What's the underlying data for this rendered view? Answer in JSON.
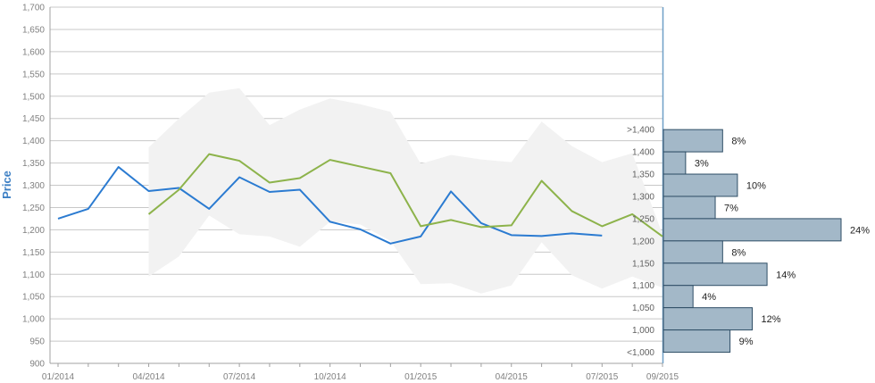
{
  "chart_data": [
    {
      "type": "line",
      "ylabel": "Price",
      "xlabel": "",
      "x_ticks": [
        "01/2014",
        "04/2014",
        "07/2014",
        "10/2014",
        "01/2015",
        "04/2015",
        "07/2015",
        "09/2015"
      ],
      "x_range": [
        "2014-01",
        "2015-09"
      ],
      "y_ticks": [
        "900",
        "950",
        "1,000",
        "1,050",
        "1,100",
        "1,150",
        "1,200",
        "1,250",
        "1,300",
        "1,350",
        "1,400",
        "1,450",
        "1,500",
        "1,550",
        "1,600",
        "1,650",
        "1,700"
      ],
      "ylim": [
        900,
        1700
      ],
      "grid": "horizontal",
      "series": [
        {
          "color": "#2b7bd1",
          "points": [
            {
              "x": "2014-01",
              "y": 1225
            },
            {
              "x": "2014-02",
              "y": 1247
            },
            {
              "x": "2014-03",
              "y": 1341
            },
            {
              "x": "2014-04",
              "y": 1287
            },
            {
              "x": "2014-05",
              "y": 1294
            },
            {
              "x": "2014-06",
              "y": 1247
            },
            {
              "x": "2014-07",
              "y": 1318
            },
            {
              "x": "2014-08",
              "y": 1285
            },
            {
              "x": "2014-09",
              "y": 1290
            },
            {
              "x": "2014-10",
              "y": 1218
            },
            {
              "x": "2014-11",
              "y": 1201
            },
            {
              "x": "2014-12",
              "y": 1169
            },
            {
              "x": "2015-01",
              "y": 1185
            },
            {
              "x": "2015-02",
              "y": 1286
            },
            {
              "x": "2015-03",
              "y": 1215
            },
            {
              "x": "2015-04",
              "y": 1188
            },
            {
              "x": "2015-05",
              "y": 1186
            },
            {
              "x": "2015-06",
              "y": 1192
            },
            {
              "x": "2015-07",
              "y": 1187
            }
          ]
        },
        {
          "color": "#8db34b",
          "points": [
            {
              "x": "2014-04",
              "y": 1235
            },
            {
              "x": "2014-05",
              "y": 1290
            },
            {
              "x": "2014-06",
              "y": 1370
            },
            {
              "x": "2014-07",
              "y": 1355
            },
            {
              "x": "2014-08",
              "y": 1306
            },
            {
              "x": "2014-09",
              "y": 1316
            },
            {
              "x": "2014-10",
              "y": 1357
            },
            {
              "x": "2014-11",
              "y": 1342
            },
            {
              "x": "2014-12",
              "y": 1327
            },
            {
              "x": "2015-01",
              "y": 1208
            },
            {
              "x": "2015-02",
              "y": 1222
            },
            {
              "x": "2015-03",
              "y": 1206
            },
            {
              "x": "2015-04",
              "y": 1210
            },
            {
              "x": "2015-05",
              "y": 1310
            },
            {
              "x": "2015-06",
              "y": 1242
            },
            {
              "x": "2015-07",
              "y": 1208
            },
            {
              "x": "2015-08",
              "y": 1235
            },
            {
              "x": "2015-09",
              "y": 1185
            }
          ]
        }
      ],
      "band": {
        "color": "#f2f2f2",
        "points": [
          {
            "x": "2014-04",
            "low": 1095,
            "high": 1385
          },
          {
            "x": "2014-05",
            "low": 1140,
            "high": 1450
          },
          {
            "x": "2014-06",
            "low": 1232,
            "high": 1508
          },
          {
            "x": "2014-07",
            "low": 1190,
            "high": 1518
          },
          {
            "x": "2014-08",
            "low": 1185,
            "high": 1435
          },
          {
            "x": "2014-09",
            "low": 1162,
            "high": 1470
          },
          {
            "x": "2014-10",
            "low": 1218,
            "high": 1495
          },
          {
            "x": "2014-11",
            "low": 1212,
            "high": 1482
          },
          {
            "x": "2014-12",
            "low": 1175,
            "high": 1465
          },
          {
            "x": "2015-01",
            "low": 1078,
            "high": 1348
          },
          {
            "x": "2015-02",
            "low": 1080,
            "high": 1368
          },
          {
            "x": "2015-03",
            "low": 1057,
            "high": 1358
          },
          {
            "x": "2015-04",
            "low": 1075,
            "high": 1352
          },
          {
            "x": "2015-05",
            "low": 1172,
            "high": 1443
          },
          {
            "x": "2015-06",
            "low": 1098,
            "high": 1388
          },
          {
            "x": "2015-07",
            "low": 1068,
            "high": 1352
          },
          {
            "x": "2015-08",
            "low": 1095,
            "high": 1372
          },
          {
            "x": "2015-09",
            "low": 1070,
            "high": 1190
          }
        ]
      }
    },
    {
      "type": "bar",
      "orientation": "horizontal",
      "categories": [
        ">1,400",
        "1,400",
        "1,350",
        "1,300",
        "1,250",
        "1,200",
        "1,150",
        "1,100",
        "1,050",
        "1,000",
        "<1,000"
      ],
      "values": [
        8,
        3,
        10,
        7,
        24,
        8,
        14,
        4,
        12,
        9,
        0
      ],
      "value_labels": [
        "8%",
        "3%",
        "10%",
        "7%",
        "24%",
        "8%",
        "14%",
        "4%",
        "12%",
        "9%",
        ""
      ],
      "bar_color": "#a3b8c8",
      "xlim": [
        0,
        24
      ]
    }
  ],
  "colors": {
    "grid": "#c8c8c8",
    "axis": "#a0a0a0",
    "divider": "#6f9fc7",
    "ylabel": "#3c7fc4",
    "bar_stroke": "#2f4e66"
  }
}
